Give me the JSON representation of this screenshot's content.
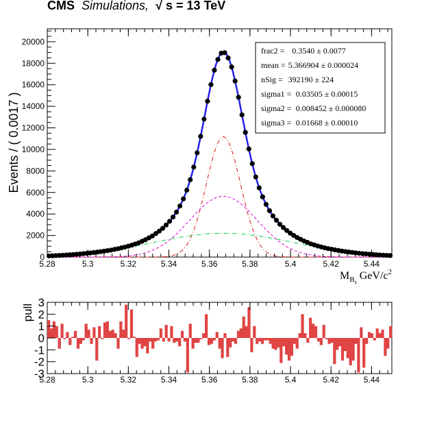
{
  "header": {
    "experiment": "CMS",
    "subtitle": "Simulations,",
    "sqrt_symbol": "√",
    "energy": "s = 13 TeV"
  },
  "chart_data": [
    {
      "type": "scatter",
      "panel": "main",
      "xlabel_main": "M",
      "xlabel_sub": "B",
      "xlabel_subsub": "s",
      "xlabel_unit": "GeV/c",
      "xlabel_sup": "2",
      "ylabel": "Events / ( 0.0017 )",
      "xlim": [
        5.28,
        5.45
      ],
      "ylim": [
        0,
        21200
      ],
      "x_ticks": [
        "5.28",
        "5.3",
        "5.32",
        "5.34",
        "5.36",
        "5.38",
        "5.4",
        "5.42",
        "5.44"
      ],
      "y_ticks": [
        "0",
        "2000",
        "4000",
        "6000",
        "8000",
        "10000",
        "12000",
        "14000",
        "16000",
        "18000",
        "20000"
      ],
      "fit": {
        "mean": 5.366904,
        "sigma1": 0.03505,
        "sigma2": 0.008452,
        "sigma3": 0.01668,
        "frac2": 0.354,
        "nSig": 392190,
        "bin_width": 0.0017
      },
      "components": [
        {
          "name": "total",
          "color": "#2222ee",
          "style": "solid"
        },
        {
          "name": "gauss-narrow",
          "color": "#dd1111",
          "style": "dash-dot"
        },
        {
          "name": "gauss-medium",
          "color": "#dd00dd",
          "style": "dashed"
        },
        {
          "name": "gauss-wide",
          "color": "#00cc44",
          "style": "dash-dot"
        }
      ],
      "data_color": "#000000",
      "stats_box": [
        {
          "name": "frac2 =",
          "value": "0.3540 ± 0.0077"
        },
        {
          "name": "mean =",
          "value": "5.366904 ± 0.000024"
        },
        {
          "name": "nSig =",
          "value": "392190 ± 224"
        },
        {
          "name": "sigma1 =",
          "value": "0.03505 ± 0.00015"
        },
        {
          "name": "sigma2 =",
          "value": "0.008452 ± 0.000080"
        },
        {
          "name": "sigma3 =",
          "value": "0.01668 ± 0.00010"
        }
      ]
    },
    {
      "type": "bar",
      "panel": "pull",
      "ylabel": "pull",
      "xlim": [
        5.28,
        5.45
      ],
      "ylim": [
        -3,
        3
      ],
      "x_ticks": [
        "5.28",
        "5.3",
        "5.32",
        "5.34",
        "5.36",
        "5.38",
        "5.4",
        "5.42",
        "5.44"
      ],
      "y_ticks": [
        "-3",
        "-2",
        "-1",
        "0",
        "1",
        "2",
        "3"
      ],
      "bar_color": "#e04444",
      "pulls": [
        1.5,
        0.8,
        1.4,
        1.0,
        -0.9,
        1.2,
        -0.1,
        0.5,
        -0.6,
        0.1,
        0.6,
        -0.9,
        -0.5,
        -0.2,
        1.2,
        0.7,
        -0.5,
        0.9,
        -1.9,
        1.0,
        -0.1,
        1.3,
        1.4,
        0.6,
        0.7,
        0.4,
        -0.9,
        1.4,
        0.7,
        2.8,
        -0.1,
        2.4,
        0.1,
        -1.6,
        -0.5,
        -0.9,
        -0.7,
        -1.3,
        -0.3,
        -0.9,
        -0.3,
        -0.2,
        0.8,
        -0.3,
        1.1,
        -0.3,
        1.0,
        -0.4,
        -0.3,
        -0.7,
        0.6,
        -0.3,
        -2.9,
        1.2,
        -0.9,
        -0.4,
        -0.4,
        -0.1,
        0.4,
        2.0,
        -0.6,
        -0.5,
        -0.2,
        0.5,
        -0.9,
        -1.7,
        0.4,
        -1.6,
        -0.8,
        -0.3,
        -0.5,
        0.6,
        0.8,
        1.8,
        1.0,
        2.6,
        -1.2,
        1.0,
        -0.5,
        -0.3,
        -0.5,
        -0.2,
        -0.2,
        -0.5,
        -0.9,
        -1.0,
        -0.8,
        -2.1,
        -0.7,
        -1.4,
        -1.9,
        -1.5,
        -0.5,
        -0.9,
        0.4,
        2.0,
        0.4,
        -0.4,
        1.7,
        1.2,
        1.0,
        -0.3,
        -0.6,
        1.1,
        -0.1,
        -0.5,
        -0.4,
        -2.2,
        -1.0,
        -0.7,
        -1.9,
        -1.1,
        -1.7,
        -2.3,
        -1.9,
        -0.5,
        -2.9,
        0.9,
        -2.5,
        -0.5,
        0.5,
        0.4,
        -0.2,
        0.8,
        0.4,
        0.7,
        -1.5,
        -0.9,
        1.0
      ]
    }
  ]
}
